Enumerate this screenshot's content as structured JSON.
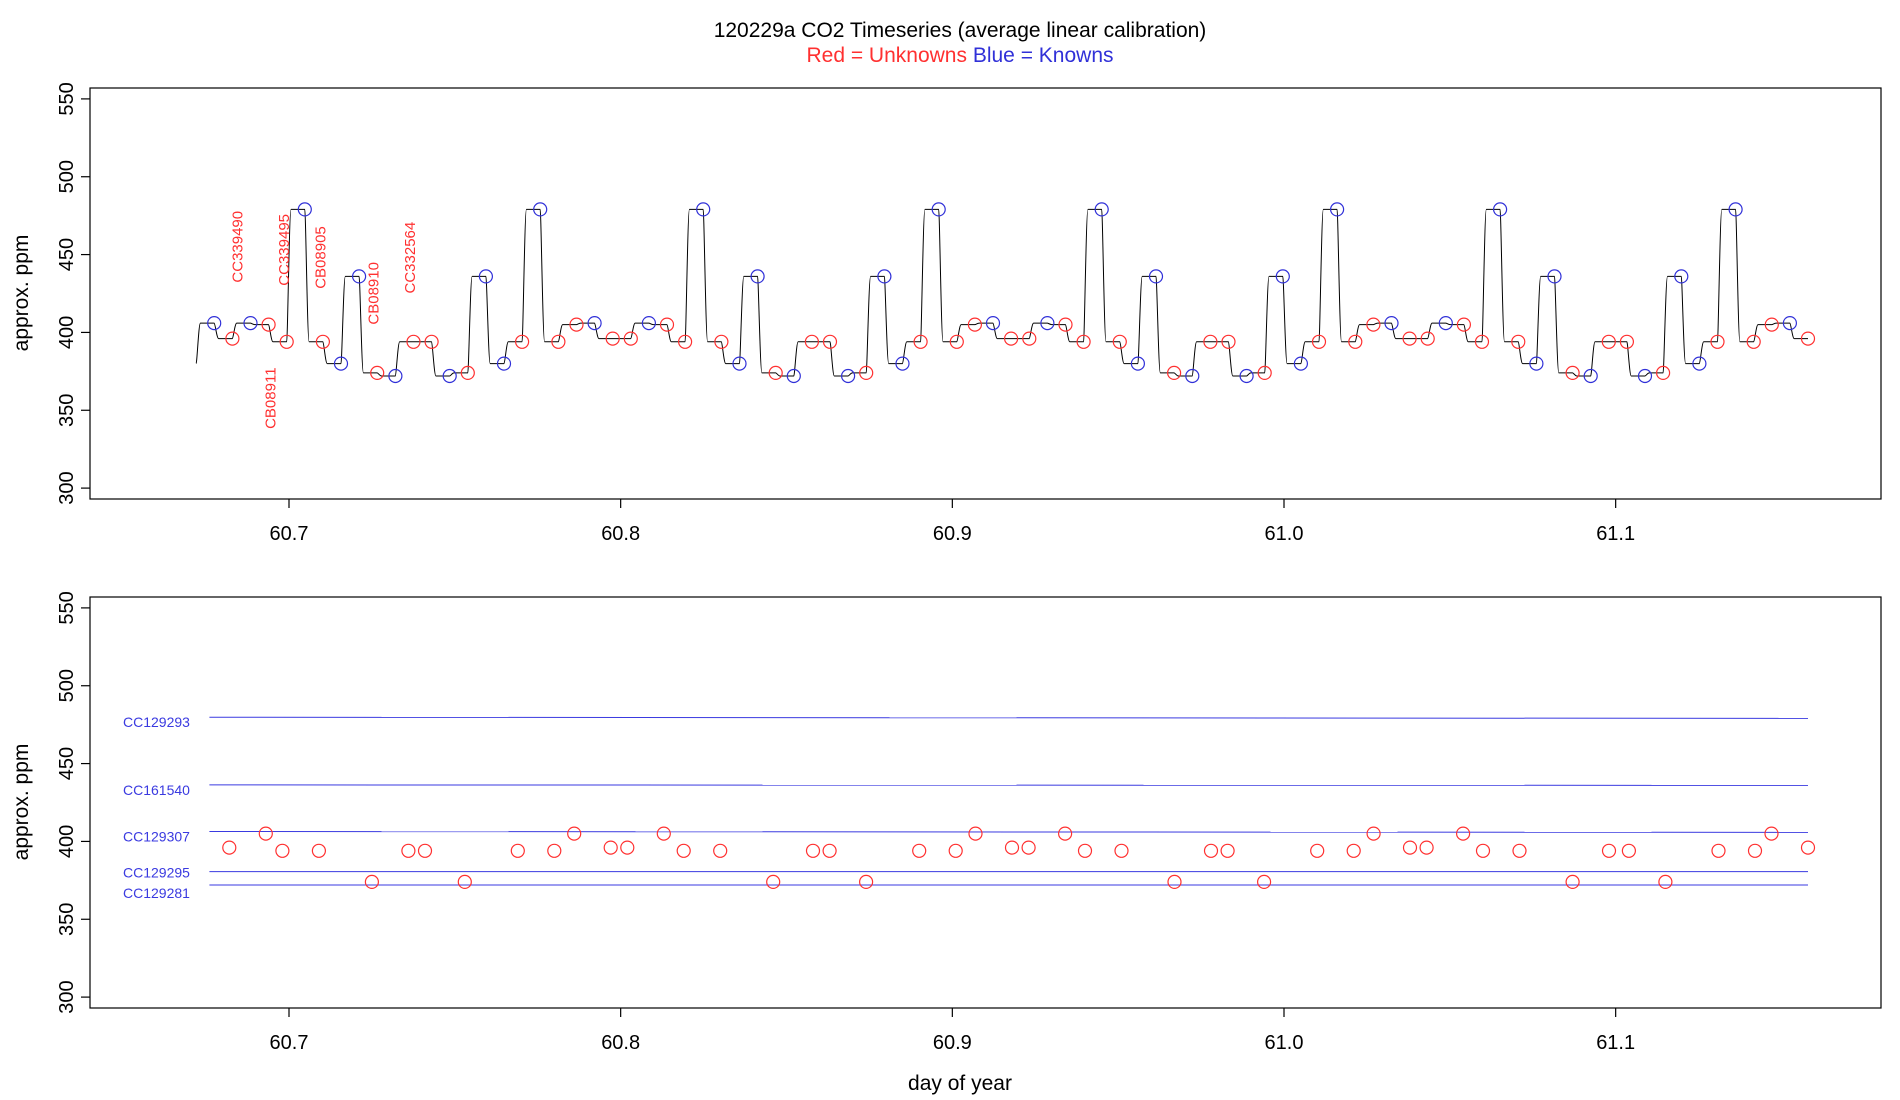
{
  "colors": {
    "unknown": "#ff3030",
    "known": "#3030d8",
    "trace": "#000000",
    "reference": "#3a3ae0",
    "axis": "#000000"
  },
  "figure": {
    "title": "120229a   CO2 Timeseries (average linear calibration)",
    "subtitle": {
      "red": "Red = Unknowns",
      "blue": "Blue = Knowns"
    },
    "xlabel": "day of year"
  },
  "chart_data": [
    {
      "type": "line",
      "ylabel": "approx. ppm",
      "xlim": [
        60.64,
        61.18
      ],
      "ylim": [
        293,
        557
      ],
      "xticks": [
        60.7,
        60.8,
        60.9,
        61.0,
        61.1
      ],
      "xtick_labels": [
        "60.7",
        "60.8",
        "60.9",
        "61.0",
        "61.1"
      ],
      "yticks": [
        300,
        350,
        400,
        450,
        500,
        550
      ],
      "ytick_labels": [
        "300",
        "350",
        "400",
        "450",
        "500",
        "550"
      ],
      "grid": false,
      "trace_start": [
        60.672,
        380
      ],
      "cycle": {
        "start": 60.672,
        "period": 0.0723,
        "pattern": [
          [
            0,
            406
          ],
          [
            0,
            396
          ],
          [
            1,
            406
          ],
          [
            0,
            405
          ],
          [
            0,
            394
          ],
          [
            1,
            479
          ],
          [
            0,
            394
          ],
          [
            1,
            380
          ],
          [
            1,
            436
          ],
          [
            0,
            374
          ],
          [
            1,
            372
          ],
          [
            0,
            394
          ],
          [
            0,
            394
          ]
        ]
      },
      "segments": [
        [
          406,
          1
        ],
        [
          396,
          0
        ],
        [
          406,
          1
        ],
        [
          405,
          0
        ],
        [
          394,
          0
        ],
        [
          479,
          1
        ],
        [
          394,
          0
        ],
        [
          380,
          1
        ],
        [
          436,
          1
        ],
        [
          374,
          0
        ],
        [
          372,
          1
        ],
        [
          394,
          0
        ],
        [
          394,
          0
        ],
        [
          372,
          1
        ],
        [
          374,
          0
        ],
        [
          436,
          1
        ],
        [
          380,
          1
        ],
        [
          394,
          0
        ],
        [
          479,
          1
        ],
        [
          394,
          0
        ],
        [
          405,
          0
        ],
        [
          406,
          1
        ],
        [
          396,
          0
        ],
        [
          396,
          0
        ],
        [
          406,
          1
        ],
        [
          405,
          0
        ],
        [
          394,
          0
        ],
        [
          479,
          1
        ],
        [
          394,
          0
        ],
        [
          380,
          1
        ],
        [
          436,
          1
        ],
        [
          374,
          0
        ],
        [
          372,
          1
        ],
        [
          394,
          0
        ],
        [
          394,
          0
        ],
        [
          372,
          1
        ],
        [
          374,
          0
        ],
        [
          436,
          1
        ],
        [
          380,
          1
        ],
        [
          394,
          0
        ],
        [
          479,
          1
        ],
        [
          394,
          0
        ],
        [
          405,
          0
        ],
        [
          406,
          1
        ],
        [
          396,
          0
        ],
        [
          396,
          0
        ],
        [
          406,
          1
        ],
        [
          405,
          0
        ],
        [
          394,
          0
        ],
        [
          479,
          1
        ],
        [
          394,
          0
        ],
        [
          380,
          1
        ],
        [
          436,
          1
        ],
        [
          374,
          0
        ],
        [
          372,
          1
        ],
        [
          394,
          0
        ],
        [
          394,
          0
        ],
        [
          372,
          1
        ],
        [
          374,
          0
        ],
        [
          436,
          1
        ],
        [
          380,
          1
        ],
        [
          394,
          0
        ],
        [
          479,
          1
        ],
        [
          394,
          0
        ],
        [
          405,
          0
        ],
        [
          406,
          1
        ],
        [
          396,
          0
        ],
        [
          396,
          0
        ],
        [
          406,
          1
        ],
        [
          405,
          0
        ],
        [
          394,
          0
        ],
        [
          479,
          1
        ],
        [
          394,
          0
        ],
        [
          380,
          1
        ],
        [
          436,
          1
        ],
        [
          374,
          0
        ],
        [
          372,
          1
        ],
        [
          394,
          0
        ],
        [
          394,
          0
        ],
        [
          372,
          1
        ],
        [
          374,
          0
        ],
        [
          436,
          1
        ],
        [
          380,
          1
        ],
        [
          394,
          0
        ],
        [
          479,
          1
        ],
        [
          394,
          0
        ],
        [
          405,
          0
        ],
        [
          406,
          1
        ],
        [
          396,
          0
        ]
      ],
      "x_end": 61.158,
      "annotations": [
        {
          "label": "CC339490",
          "x": 60.686,
          "y": 432
        },
        {
          "label": "CB08911",
          "x": 60.696,
          "y": 338
        },
        {
          "label": "CC339495",
          "x": 60.7,
          "y": 430
        },
        {
          "label": "CB08905",
          "x": 60.711,
          "y": 428
        },
        {
          "label": "CB08910",
          "x": 60.727,
          "y": 405
        },
        {
          "label": "CC332564",
          "x": 60.738,
          "y": 425
        }
      ]
    },
    {
      "type": "scatter",
      "ylabel": "approx. ppm",
      "xlim": [
        60.64,
        61.18
      ],
      "ylim": [
        293,
        557
      ],
      "xticks": [
        60.7,
        60.8,
        60.9,
        61.0,
        61.1
      ],
      "xtick_labels": [
        "60.7",
        "60.8",
        "60.9",
        "61.0",
        "61.1"
      ],
      "yticks": [
        300,
        350,
        400,
        450,
        500,
        550
      ],
      "ytick_labels": [
        "300",
        "350",
        "400",
        "450",
        "500",
        "550"
      ],
      "grid": false,
      "reference_lines": [
        {
          "label": "CC129293",
          "x": [
            60.676,
            61.158
          ],
          "y": [
            479.8,
            479.0
          ]
        },
        {
          "label": "CC161540",
          "x": [
            60.676,
            61.158
          ],
          "y": [
            436.3,
            436.0
          ]
        },
        {
          "label": "CC129307",
          "x": [
            60.676,
            61.158
          ],
          "y": [
            406.4,
            405.8
          ]
        },
        {
          "label": "CC129295",
          "x": [
            60.676,
            61.158
          ],
          "y": [
            380.6,
            380.6
          ]
        },
        {
          "label": "CC129281",
          "x": [
            60.676,
            61.158
          ],
          "y": [
            372.0,
            372.0
          ]
        }
      ],
      "points": [
        [
          60.682,
          396
        ],
        [
          60.693,
          405
        ],
        [
          60.698,
          394
        ],
        [
          60.709,
          394
        ],
        [
          60.725,
          374
        ],
        [
          60.736,
          394
        ],
        [
          60.741,
          394
        ],
        [
          60.753,
          374
        ],
        [
          60.769,
          394
        ],
        [
          60.78,
          394
        ],
        [
          60.786,
          405
        ],
        [
          60.797,
          396
        ],
        [
          60.802,
          396
        ],
        [
          60.813,
          405
        ],
        [
          60.819,
          394
        ],
        [
          60.83,
          394
        ],
        [
          60.846,
          374
        ],
        [
          60.858,
          394
        ],
        [
          60.863,
          394
        ],
        [
          60.874,
          374
        ],
        [
          60.89,
          394
        ],
        [
          60.901,
          394
        ],
        [
          60.907,
          405
        ],
        [
          60.918,
          396
        ],
        [
          60.923,
          396
        ],
        [
          60.934,
          405
        ],
        [
          60.94,
          394
        ],
        [
          60.951,
          394
        ],
        [
          60.967,
          374
        ],
        [
          60.978,
          394
        ],
        [
          60.983,
          394
        ],
        [
          60.994,
          374
        ],
        [
          61.01,
          394
        ],
        [
          61.021,
          394
        ],
        [
          61.027,
          405
        ],
        [
          61.038,
          396
        ],
        [
          61.043,
          396
        ],
        [
          61.054,
          405
        ],
        [
          61.06,
          394
        ],
        [
          61.071,
          394
        ],
        [
          61.087,
          374
        ],
        [
          61.098,
          394
        ],
        [
          61.104,
          394
        ],
        [
          61.115,
          374
        ],
        [
          61.131,
          394
        ],
        [
          61.142,
          394
        ],
        [
          61.147,
          405
        ],
        [
          61.158,
          396
        ]
      ]
    }
  ]
}
